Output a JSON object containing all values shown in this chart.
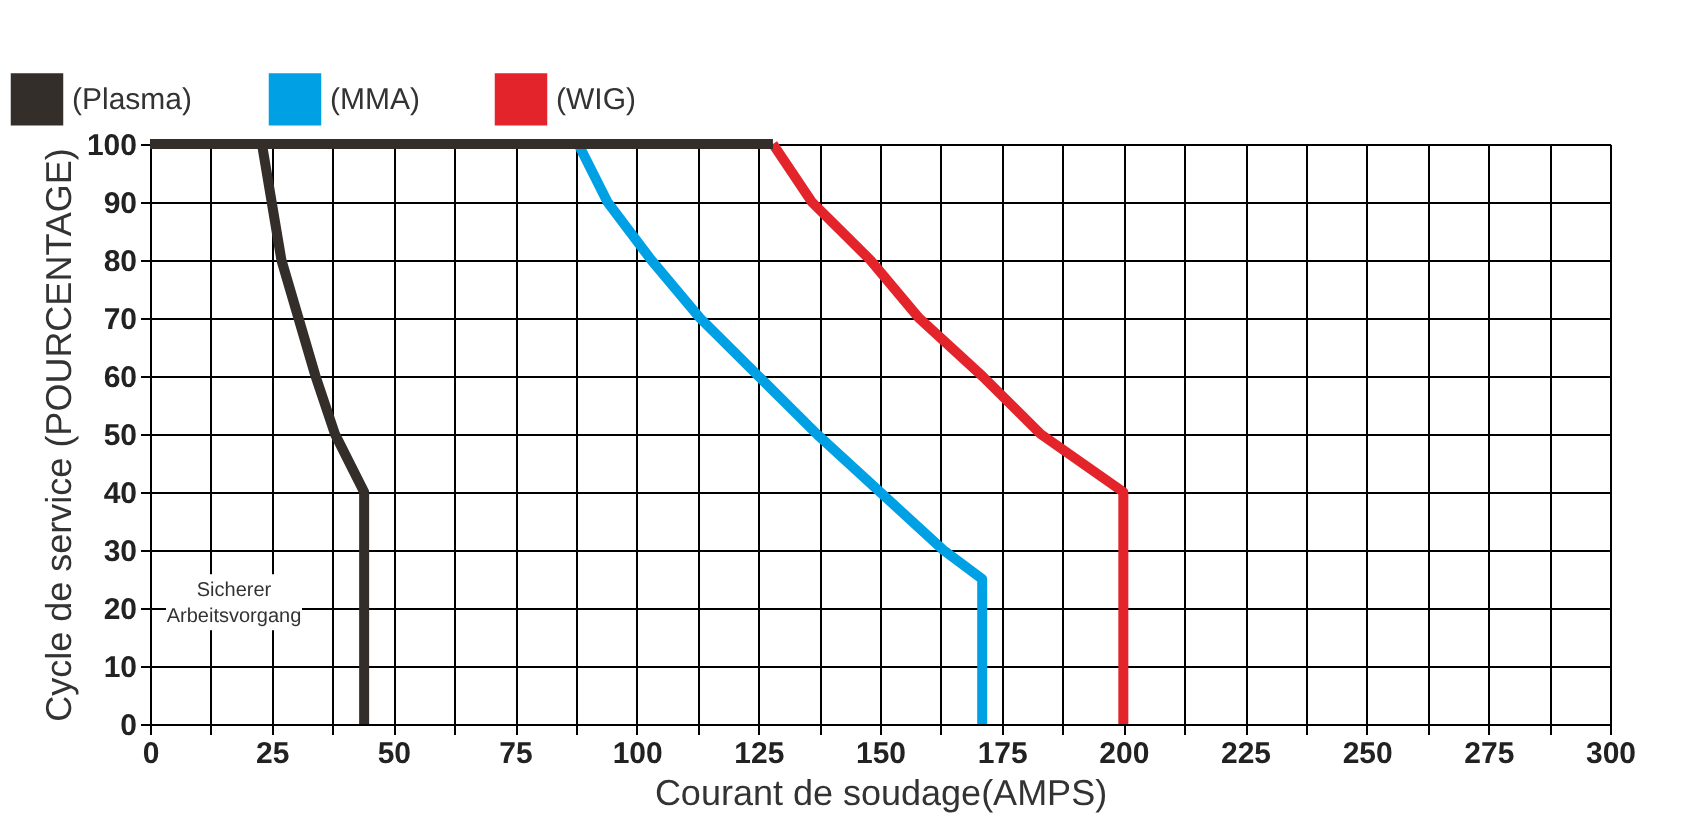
{
  "chart_data": {
    "type": "line",
    "xlabel": "Courant de soudage(AMPS)",
    "ylabel": "Cycle de service (POURCENTAGE)",
    "xlim": [
      0,
      300
    ],
    "ylim": [
      0,
      100
    ],
    "xticks": [
      0,
      {
        "value": 12.5,
        "label": null
      },
      25,
      {
        "value": 37.5,
        "label": null
      },
      50,
      {
        "value": 62.5,
        "label": null
      },
      75,
      {
        "value": 87.5,
        "label": null
      },
      100,
      {
        "value": 112.5,
        "label": null
      },
      125,
      {
        "value": 137.5,
        "label": null
      },
      150,
      {
        "value": 162.5,
        "label": null
      },
      175,
      {
        "value": 187.5,
        "label": null
      },
      200,
      {
        "value": 212.5,
        "label": null
      },
      225,
      {
        "value": 237.5,
        "label": null
      },
      250,
      {
        "value": 262.5,
        "label": null
      },
      275,
      {
        "value": 287.5,
        "label": null
      },
      300
    ],
    "yticks": [
      0,
      10,
      20,
      30,
      40,
      50,
      60,
      70,
      80,
      90,
      100
    ],
    "grid": true,
    "legend": "top left",
    "marker": "none",
    "line_style": "solid",
    "annotations": [
      "Sicherer Arbeitsvorgang"
    ],
    "series": [
      {
        "name": "(Plasma)",
        "color": "#342e2b",
        "x": [
          23,
          25,
          27,
          30.5,
          34,
          38,
          44,
          44
        ],
        "values": [
          100,
          90,
          80,
          70,
          60,
          50,
          40,
          0
        ]
      },
      {
        "name": "(MMA)",
        "color": "#00a0e4",
        "x": [
          88,
          94,
          103,
          113,
          125,
          137,
          150,
          163,
          171,
          171
        ],
        "values": [
          100,
          90,
          80,
          70,
          60,
          50,
          40,
          30,
          25,
          0
        ]
      },
      {
        "name": "(WIG)",
        "color": "#e3242b",
        "x": [
          128,
          136,
          148,
          158,
          171,
          183,
          200,
          200
        ],
        "values": [
          100,
          90,
          80,
          70,
          60,
          50,
          40,
          0
        ]
      },
      {
        "color": "#342e2b",
        "x": [
          0,
          128
        ],
        "values": [
          100,
          100
        ]
      }
    ]
  }
}
